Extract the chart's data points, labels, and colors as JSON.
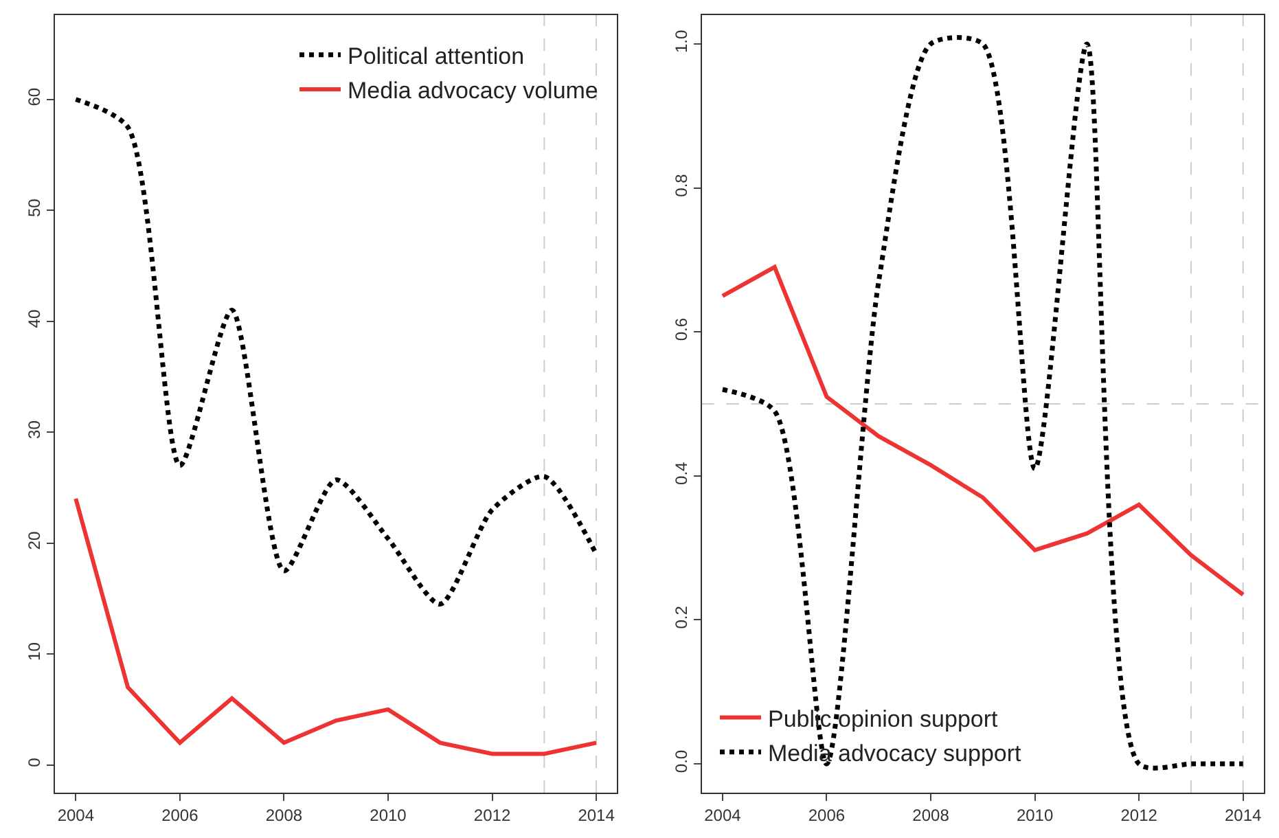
{
  "chart_data": [
    {
      "type": "line",
      "x": [
        2004,
        2005,
        2006,
        2007,
        2008,
        2009,
        2010,
        2011,
        2012,
        2013,
        2014
      ],
      "xlim": [
        2003.6,
        2014.4
      ],
      "xticks": [
        2004,
        2006,
        2008,
        2010,
        2012,
        2014
      ],
      "ylim": [
        -2.5,
        67.6
      ],
      "yticks": [
        0,
        10,
        20,
        30,
        40,
        50,
        60
      ],
      "grid": false,
      "legend": "top right",
      "series": [
        {
          "name": "Political attention",
          "color": "#000000",
          "line_style": "dotted",
          "values": [
            60,
            57.5,
            27,
            41,
            17.5,
            25.7,
            20.4,
            14.5,
            23,
            26,
            19
          ]
        },
        {
          "name": "Media advocacy volume",
          "color": "#ee3333",
          "line_style": "solid",
          "values": [
            24,
            7,
            2,
            6,
            2,
            4,
            5,
            2,
            1,
            1,
            2
          ]
        }
      ],
      "ref_lines": [
        {
          "axis": "x",
          "value": 2013,
          "color": "#cccccc",
          "line_style": "dashed"
        },
        {
          "axis": "x",
          "value": 2014,
          "color": "#cccccc",
          "line_style": "dashed"
        }
      ]
    },
    {
      "type": "line",
      "x": [
        2004,
        2005,
        2006,
        2007,
        2008,
        2009,
        2010,
        2011,
        2012,
        2013,
        2014
      ],
      "xlim": [
        2003.6,
        2014.4
      ],
      "xticks": [
        2004,
        2006,
        2008,
        2010,
        2012,
        2014
      ],
      "ylim": [
        -0.04,
        1.04
      ],
      "yticks": [
        {
          "value": 0,
          "label": "0.0"
        },
        0.2,
        0.4,
        0.6,
        0.8,
        {
          "value": 1,
          "label": "1.0"
        }
      ],
      "grid": false,
      "legend": "bottom left",
      "series": [
        {
          "name": "Public opinion support",
          "color": "#ee3333",
          "line_style": "solid",
          "values": [
            0.65,
            0.69,
            0.51,
            0.455,
            0.415,
            0.37,
            0.297,
            0.32,
            0.36,
            0.29,
            0.235
          ]
        },
        {
          "name": "Media advocacy support",
          "color": "#000000",
          "line_style": "dotted",
          "values": [
            0.52,
            0.49,
            0.0,
            0.67,
            1.0,
            1.0,
            0.41,
            1.0,
            0.0,
            0.0,
            0.0
          ]
        }
      ],
      "ref_lines": [
        {
          "axis": "x",
          "value": 2013,
          "color": "#cccccc",
          "line_style": "dashed"
        },
        {
          "axis": "x",
          "value": 2014,
          "color": "#cccccc",
          "line_style": "dashed"
        },
        {
          "axis": "y",
          "value": 0.5,
          "color": "#cccccc",
          "line_style": "dashed"
        }
      ]
    }
  ]
}
